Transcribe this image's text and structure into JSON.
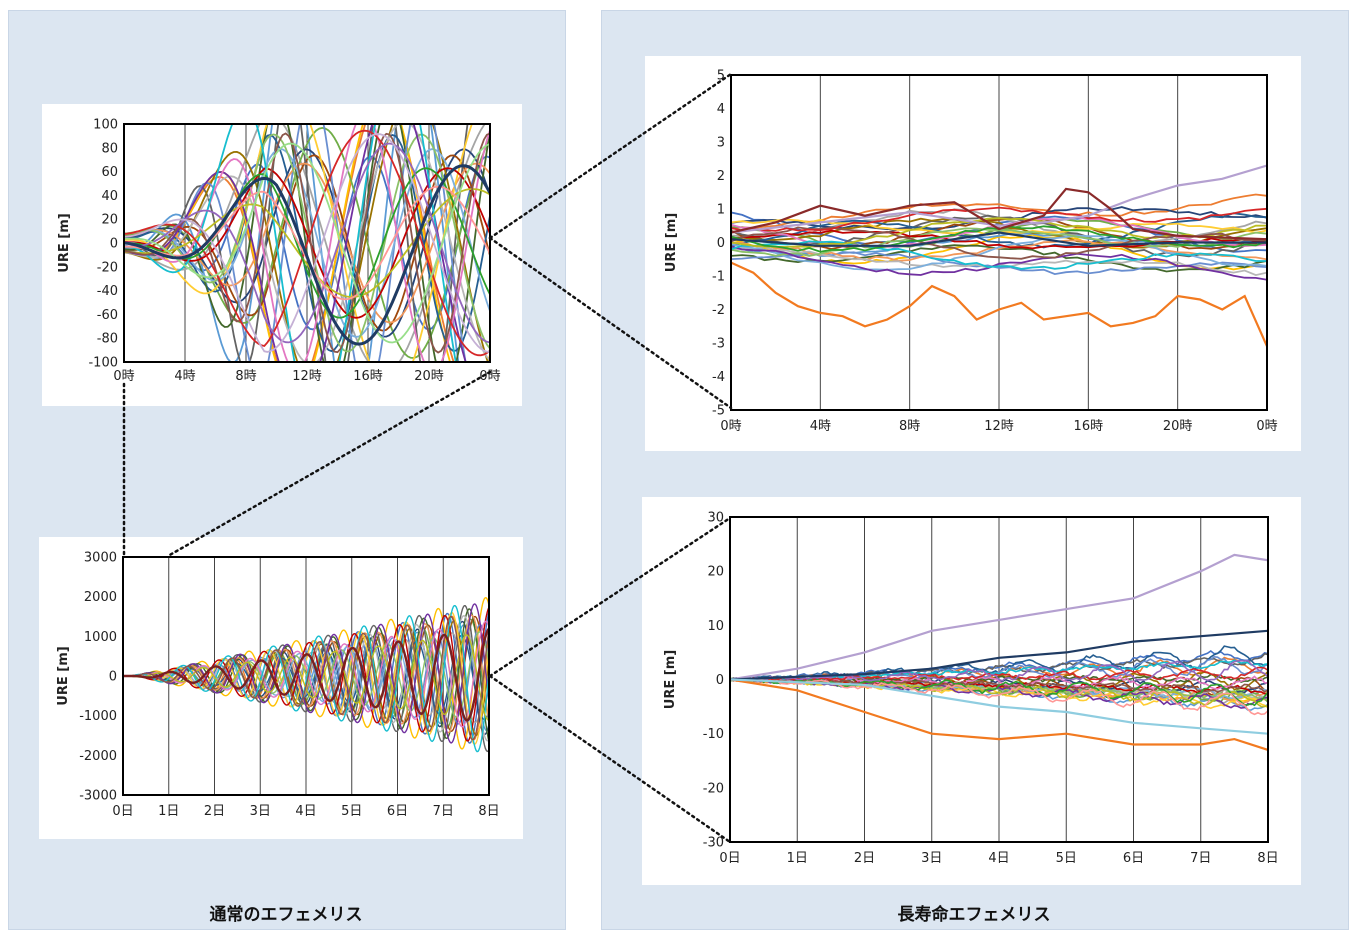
{
  "panels": {
    "left_caption": "通常のエフェメリス",
    "right_caption": "長寿命エフェメリス"
  },
  "chart_data": [
    {
      "id": "normal_1day",
      "type": "line",
      "ylabel": "URE [m]",
      "ylim": [
        -100,
        100
      ],
      "yticks": [
        -100,
        -80,
        -60,
        -40,
        -20,
        0,
        20,
        40,
        60,
        80,
        100
      ],
      "xticks": [
        "0時",
        "4時",
        "8時",
        "12時",
        "16時",
        "20時",
        "0時"
      ],
      "grid": "vertical",
      "n_series": 30,
      "highlight_series": "dark-navy thick line"
    },
    {
      "id": "normal_8day",
      "type": "line",
      "ylabel": "URE [m]",
      "ylim": [
        -3000,
        3000
      ],
      "yticks": [
        -3000,
        -2000,
        -1000,
        0,
        1000,
        2000,
        3000
      ],
      "xticks": [
        "0日",
        "1日",
        "2日",
        "3日",
        "4日",
        "5日",
        "6日",
        "7日",
        "8日"
      ],
      "grid": "vertical",
      "envelope_peak": 2000
    },
    {
      "id": "long_1day",
      "type": "line",
      "ylabel": "URE [m]",
      "ylim": [
        -5,
        5
      ],
      "yticks": [
        -5,
        -4,
        -3,
        -2,
        -1,
        0,
        1,
        2,
        3,
        4,
        5
      ],
      "xticks": [
        "0時",
        "4時",
        "8時",
        "12時",
        "16時",
        "20時",
        "0時"
      ],
      "grid": "vertical",
      "notable_series": [
        {
          "color": "#f27a20",
          "x": [
            0,
            1,
            2,
            3,
            4,
            5,
            6,
            7,
            8,
            9,
            10,
            11,
            12,
            13,
            14,
            15,
            16,
            17,
            18,
            19,
            20,
            21,
            22,
            23,
            24
          ],
          "values": [
            -0.6,
            -0.9,
            -1.5,
            -1.9,
            -2.1,
            -2.2,
            -2.5,
            -2.3,
            -1.9,
            -1.3,
            -1.6,
            -2.3,
            -2.0,
            -1.8,
            -2.3,
            -2.2,
            -2.1,
            -2.5,
            -2.4,
            -2.2,
            -1.6,
            -1.7,
            -2.0,
            -1.6,
            -3.1
          ]
        },
        {
          "color": "#b4a0d0",
          "x": [
            0,
            4,
            8,
            12,
            14,
            16,
            18,
            20,
            22,
            24
          ],
          "values": [
            0.3,
            0.6,
            0.9,
            0.5,
            0.6,
            0.8,
            1.3,
            1.7,
            1.9,
            2.3
          ]
        },
        {
          "color": "#8a2a2a",
          "x": [
            0,
            2,
            4,
            6,
            8,
            10,
            12,
            14,
            15,
            16,
            17,
            18,
            20,
            24
          ],
          "values": [
            0.3,
            0.6,
            1.1,
            0.8,
            1.1,
            1.2,
            0.4,
            0.8,
            1.6,
            1.5,
            1.0,
            0.4,
            0.2,
            0.1
          ]
        },
        {
          "color": "#1f3b63",
          "x": [
            0,
            4,
            8,
            12,
            16,
            20,
            24
          ],
          "values": [
            0.1,
            -0.1,
            -0.1,
            0.3,
            -0.1,
            0.0,
            0.0
          ]
        }
      ]
    },
    {
      "id": "long_8day",
      "type": "line",
      "ylabel": "URE [m]",
      "ylim": [
        -30,
        30
      ],
      "yticks": [
        -30,
        -20,
        -10,
        0,
        10,
        20,
        30
      ],
      "xticks": [
        "0日",
        "1日",
        "2日",
        "3日",
        "4日",
        "5日",
        "6日",
        "7日",
        "8日"
      ],
      "grid": "vertical",
      "notable_series": [
        {
          "color": "#b4a0d0",
          "x": [
            0,
            1,
            2,
            3,
            4,
            5,
            6,
            7,
            7.5,
            8
          ],
          "values": [
            0,
            2,
            5,
            9,
            11,
            13,
            15,
            20,
            23,
            22
          ]
        },
        {
          "color": "#f27a20",
          "x": [
            0,
            1,
            2,
            3,
            4,
            5,
            6,
            7,
            7.5,
            8
          ],
          "values": [
            0,
            -2,
            -6,
            -10,
            -11,
            -10,
            -12,
            -12,
            -11,
            -13
          ]
        },
        {
          "color": "#1f3b63",
          "x": [
            0,
            1,
            2,
            3,
            4,
            5,
            6,
            7,
            8
          ],
          "values": [
            0,
            0.5,
            1,
            2,
            4,
            5,
            7,
            8,
            9
          ]
        },
        {
          "color": "#8fcde0",
          "x": [
            0,
            1,
            2,
            3,
            4,
            5,
            6,
            7,
            8
          ],
          "values": [
            0,
            -0.5,
            -1,
            -3,
            -5,
            -6,
            -8,
            -9,
            -10
          ]
        }
      ]
    }
  ]
}
